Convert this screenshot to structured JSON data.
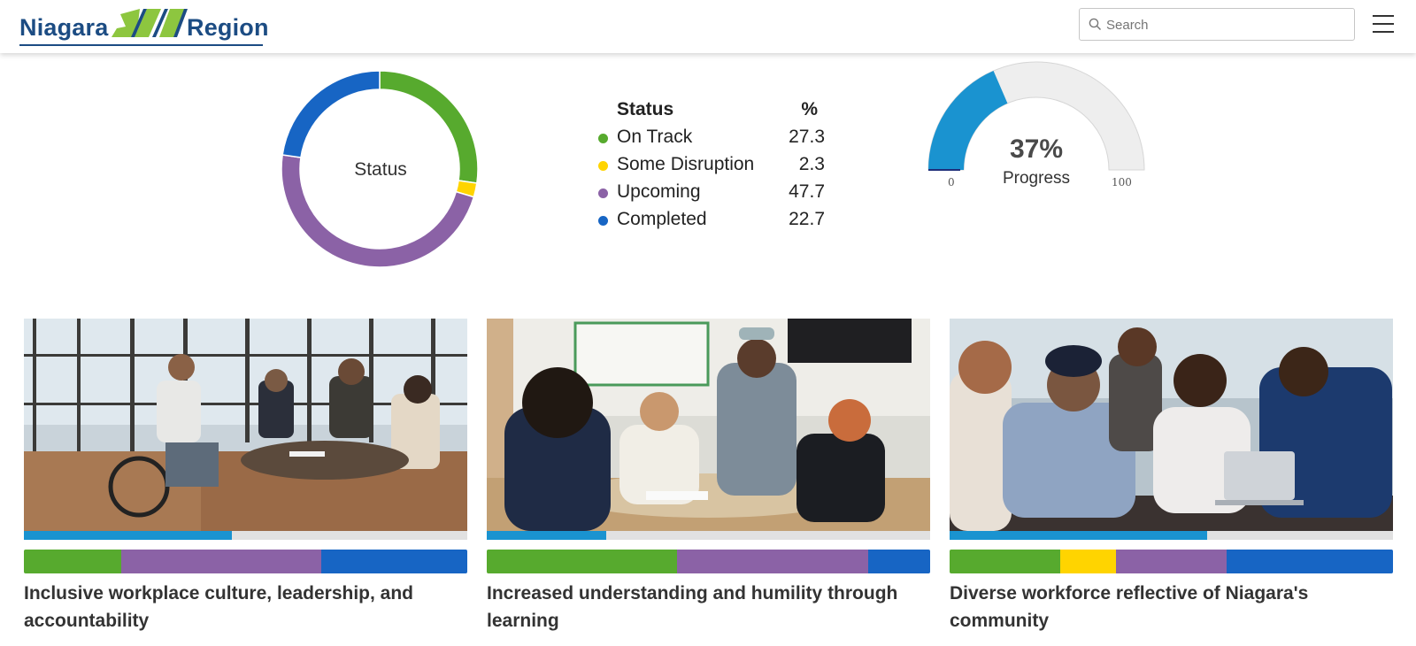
{
  "header": {
    "logo_left": "Niagara",
    "logo_right": "Region",
    "search_placeholder": "Search"
  },
  "colors": {
    "on_track": "#57aa2e",
    "some_disruption": "#ffd400",
    "upcoming": "#8b62a6",
    "completed": "#1765c4",
    "progress": "#1a93d0",
    "logo_blue": "#1c4c83",
    "logo_green": "#8dc63f"
  },
  "status_chart": {
    "center_label": "Status",
    "legend_header": {
      "status": "Status",
      "percent": "%"
    },
    "items": [
      {
        "label": "On Track",
        "value": 27.3,
        "display": "27.3",
        "color": "#57aa2e"
      },
      {
        "label": "Some Disruption",
        "value": 2.3,
        "display": "2.3",
        "color": "#ffd400"
      },
      {
        "label": "Upcoming",
        "value": 47.7,
        "display": "47.7",
        "color": "#8b62a6"
      },
      {
        "label": "Completed",
        "value": 22.7,
        "display": "22.7",
        "color": "#1765c4"
      }
    ]
  },
  "progress_gauge": {
    "value": 37,
    "display": "37%",
    "label": "Progress",
    "min": "0",
    "max": "100"
  },
  "cards": [
    {
      "title": "Inclusive workplace culture, leadership, and accountability",
      "progress": 0.47,
      "status": [
        {
          "key": "on_track",
          "value": 0.22
        },
        {
          "key": "upcoming",
          "value": 0.45
        },
        {
          "key": "completed",
          "value": 0.33
        }
      ]
    },
    {
      "title": "Increased understanding and humility through learning",
      "progress": 0.27,
      "status": [
        {
          "key": "on_track",
          "value": 0.43
        },
        {
          "key": "upcoming",
          "value": 0.43
        },
        {
          "key": "completed",
          "value": 0.14
        }
      ]
    },
    {
      "title": "Diverse workforce reflective of Niagara's community",
      "progress": 0.58,
      "status": [
        {
          "key": "on_track",
          "value": 0.25
        },
        {
          "key": "some_disruption",
          "value": 0.125
        },
        {
          "key": "upcoming",
          "value": 0.25
        },
        {
          "key": "completed",
          "value": 0.375
        }
      ]
    }
  ]
}
